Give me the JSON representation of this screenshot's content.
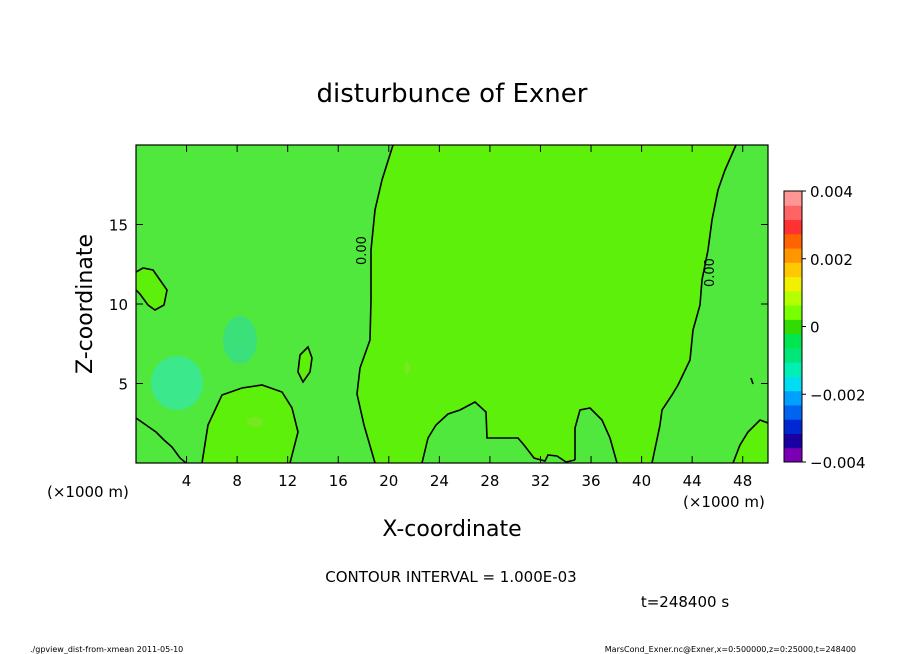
{
  "chart_data": {
    "type": "heatmap",
    "title": "disturbunce of Exner",
    "xlabel": "X-coordinate",
    "ylabel": "Z-coordinate",
    "x_unit": "(×1000 m)",
    "y_unit": "(×1000 m)",
    "xlim": [
      0,
      50
    ],
    "ylim": [
      0,
      20
    ],
    "x_ticks": [
      4,
      8,
      12,
      16,
      20,
      24,
      28,
      32,
      36,
      40,
      44,
      48
    ],
    "y_ticks": [
      5,
      10,
      15
    ],
    "colorbar": {
      "min": -0.004,
      "max": 0.004,
      "tick_values": [
        0.004,
        0.002,
        0,
        -0.002,
        -0.004
      ],
      "tick_labels": [
        "0.004",
        "0.002",
        "0",
        "−0.002",
        "−0.004"
      ],
      "colors": [
        "#7b00b4",
        "#1a00a0",
        "#0028d2",
        "#0064f0",
        "#00a0ff",
        "#00dcf0",
        "#00f0b4",
        "#00e678",
        "#00e650",
        "#32dc00",
        "#78ff00",
        "#b4ff00",
        "#f0f000",
        "#ffc800",
        "#ff9600",
        "#ff6400",
        "#ff3232",
        "#ff6464",
        "#ff9696"
      ]
    },
    "contour_interval_text": "CONTOUR INTERVAL = 1.000E-03",
    "contour_labels": [
      "0.00",
      "0.00"
    ],
    "time_text": "t=248400 s",
    "regions": [
      {
        "name": "background",
        "value": 0.0,
        "color": "#50e83c"
      },
      {
        "name": "positive-region-center",
        "value": 0.0006,
        "color": "#5df00a"
      },
      {
        "name": "positive-region-right",
        "value": 0.0006,
        "color": "#5df00a"
      },
      {
        "name": "positive-region-bottom-left",
        "value": 0.0006,
        "color": "#5df00a"
      },
      {
        "name": "negative-blob-left",
        "value": -0.0012,
        "color": "#3ce88c"
      },
      {
        "name": "negative-blob-upper",
        "value": -0.0008,
        "color": "#3ce07a"
      }
    ]
  },
  "footer": {
    "left": "./gpview_dist-from-xmean   2011-05-10",
    "right": "MarsCond_Exner.nc@Exner,x=0:500000,z=0:25000,t=248400"
  },
  "icons": {
    "colorbar": "colorbar-legend"
  }
}
